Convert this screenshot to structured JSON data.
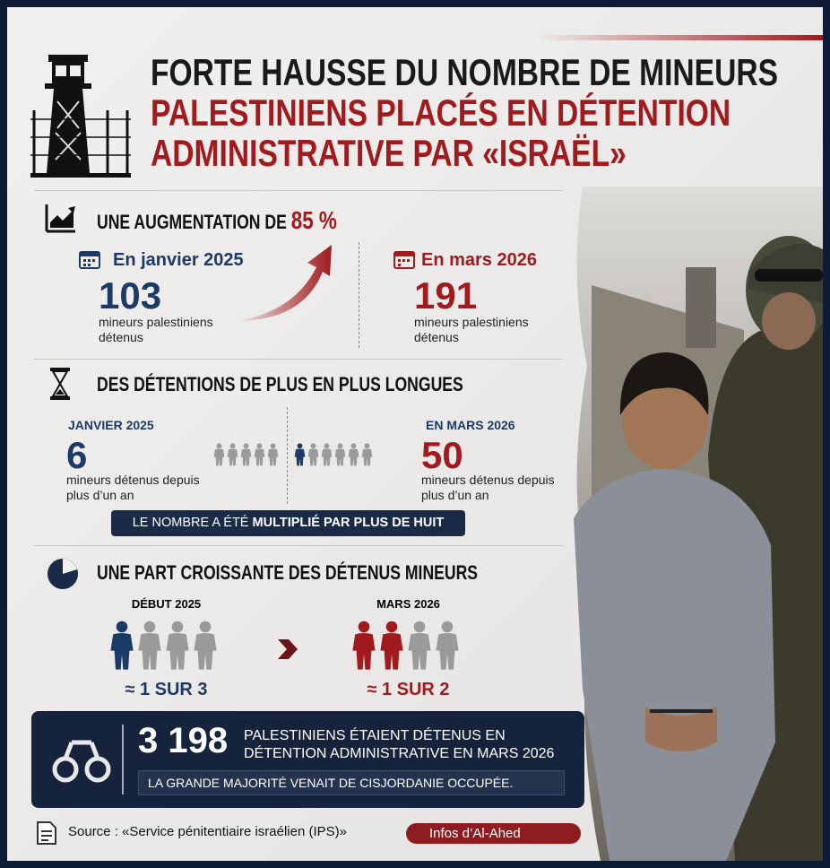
{
  "header": {
    "title_lines": [
      "FORTE HAUSSE DU NOMBRE DE MINEURS",
      "PALESTINIENS PLACÉS EN DÉTENTION",
      "ADMINISTRATIVE PAR «ISRAËL»"
    ]
  },
  "increase": {
    "heading": "UNE AUGMENTATION DE",
    "highlight": "85 %",
    "before": {
      "date": "En janvier 2025",
      "number": "103",
      "description": "mineurs palestiniens détenus"
    },
    "after": {
      "date": "En mars 2026",
      "number": "191",
      "description": "mineurs palestiniens détenus"
    }
  },
  "duration": {
    "heading": "DES DÉTENTIONS DE PLUS EN PLUS LONGUES",
    "before": {
      "date": "JANVIER 2025",
      "number": "6",
      "description": "mineurs détenus depuis plus d’un an"
    },
    "after": {
      "date": "EN MARS 2026",
      "number": "50",
      "description": "mineurs détenus depuis plus d’un an"
    },
    "banner": {
      "text": "LE NOMBRE A ÉTÉ",
      "highlight": "MULTIPLIÉ PAR PLUS DE HUIT"
    }
  },
  "share": {
    "heading": "UNE PART CROISSANTE DES DÉTENUS MINEURS",
    "before": {
      "date": "DÉBUT 2025",
      "ratio": "≈ 1 SUR 3"
    },
    "after": {
      "date": "MARS 2026",
      "ratio": "≈ 1 SUR 2"
    }
  },
  "total": {
    "number": "3 198",
    "text": "PALESTINIENS ÉTAIENT DÉTENUS EN DÉTENTION ADMINISTRATIVE EN MARS 2026",
    "note": "LA GRANDE MAJORITÉ VENAIT DE CISJORDANIE OCCUPÉE."
  },
  "footer": {
    "source": "Source : «Service pénitentiaire israélien (IPS)»",
    "brand": "Infos d’Al-Ahed"
  }
}
